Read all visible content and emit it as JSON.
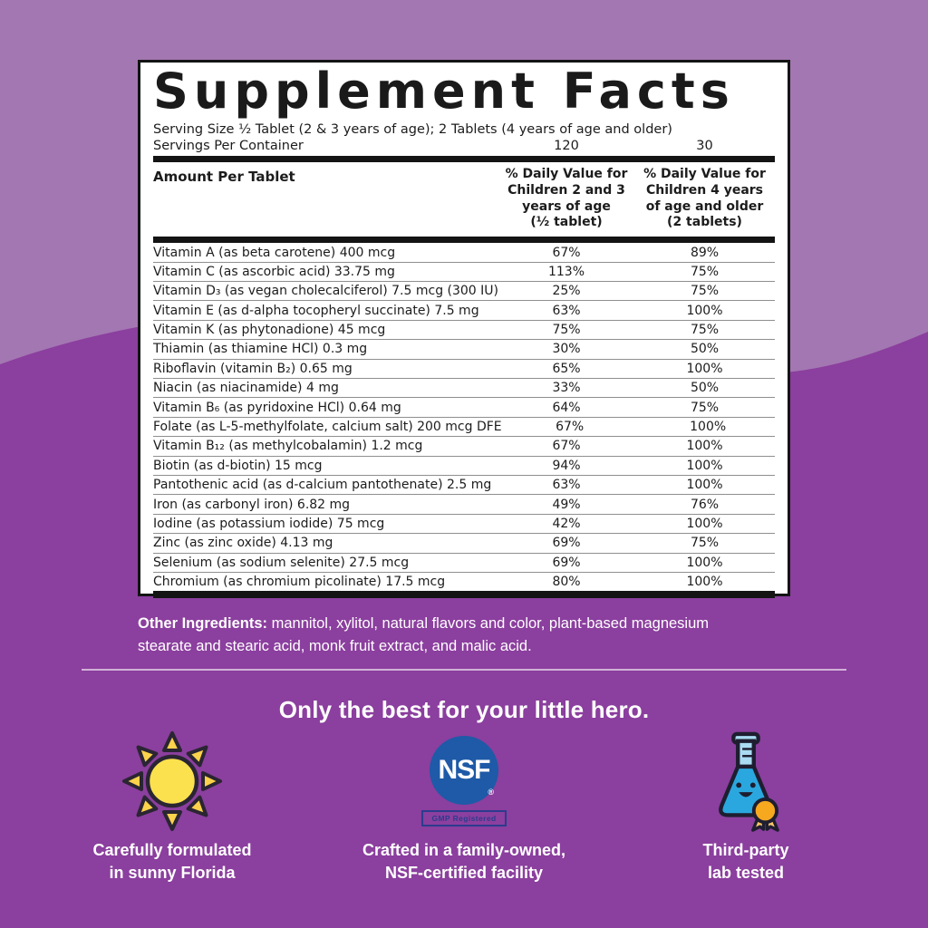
{
  "colors": {
    "background_light_purple": "#A377B2",
    "background_dark_purple": "#8B3F9E",
    "panel_background": "#FFFFFF",
    "panel_text": "#1C1C1C",
    "nsf_blue": "#1E5AA7",
    "gmp_navy": "#2B3C8E",
    "sun_yellow": "#FBE14D",
    "flask_blue": "#2AA7DF",
    "flask_neck_blue": "#A9DCF2",
    "ribbon_orange": "#F6A81F"
  },
  "label": {
    "title": "Supplement Facts",
    "serving_size_line": "Serving Size ½ Tablet (2 & 3 years of age); 2 Tablets (4 years of age and older)",
    "servings_per_container": {
      "label": "Servings Per Container",
      "value_children_2_3": "120",
      "value_children_4_plus": "30"
    },
    "columns": {
      "amount_header": "Amount Per Tablet",
      "col1_header": "% Daily Value for\nChildren 2 and 3\nyears of age\n(½ tablet)",
      "col2_header": "% Daily Value for\nChildren 4 years\nof age and older\n(2 tablets)"
    },
    "nutrients": [
      {
        "name": "Vitamin A (as beta carotene) 400 mcg",
        "dv1": "67%",
        "dv2": "89%"
      },
      {
        "name": "Vitamin C (as ascorbic acid) 33.75 mg",
        "dv1": "113%",
        "dv2": "75%"
      },
      {
        "name": "Vitamin D₃ (as vegan cholecalciferol) 7.5 mcg (300 IU)",
        "dv1": "25%",
        "dv2": "75%"
      },
      {
        "name": "Vitamin E (as d-alpha tocopheryl succinate) 7.5 mg",
        "dv1": "63%",
        "dv2": "100%"
      },
      {
        "name": "Vitamin K (as phytonadione) 45 mcg",
        "dv1": "75%",
        "dv2": "75%"
      },
      {
        "name": "Thiamin (as thiamine HCl) 0.3 mg",
        "dv1": "30%",
        "dv2": "50%"
      },
      {
        "name": "Riboflavin (vitamin B₂) 0.65 mg",
        "dv1": "65%",
        "dv2": "100%"
      },
      {
        "name": "Niacin (as niacinamide) 4 mg",
        "dv1": "33%",
        "dv2": "50%"
      },
      {
        "name": "Vitamin B₆ (as pyridoxine HCl) 0.64 mg",
        "dv1": "64%",
        "dv2": "75%"
      },
      {
        "name": "Folate (as L-5-methylfolate, calcium salt) 200 mcg DFE",
        "dv1": "67%",
        "dv2": "100%"
      },
      {
        "name": "Vitamin B₁₂ (as methylcobalamin) 1.2 mcg",
        "dv1": "67%",
        "dv2": "100%"
      },
      {
        "name": "Biotin (as d-biotin) 15 mcg",
        "dv1": "94%",
        "dv2": "100%"
      },
      {
        "name": "Pantothenic acid (as d-calcium pantothenate) 2.5 mg",
        "dv1": "63%",
        "dv2": "100%"
      },
      {
        "name": "Iron (as carbonyl iron) 6.82 mg",
        "dv1": "49%",
        "dv2": "76%"
      },
      {
        "name": "Iodine (as potassium iodide) 75 mcg",
        "dv1": "42%",
        "dv2": "100%"
      },
      {
        "name": "Zinc (as zinc oxide) 4.13 mg",
        "dv1": "69%",
        "dv2": "75%"
      },
      {
        "name": "Selenium (as sodium selenite) 27.5 mcg",
        "dv1": "69%",
        "dv2": "100%"
      },
      {
        "name": "Chromium (as chromium picolinate) 17.5 mcg",
        "dv1": "80%",
        "dv2": "100%"
      }
    ]
  },
  "other_ingredients": {
    "label": "Other Ingredients:",
    "text": " mannitol, xylitol, natural flavors and color, plant-based magnesium\nstearate and stearic acid, monk fruit extract, and malic acid."
  },
  "tagline": "Only the best for your little hero.",
  "badges": [
    {
      "icon": "sun-icon",
      "caption": "Carefully formulated\nin sunny Florida"
    },
    {
      "icon": "nsf-logo",
      "logo_text": "NSF",
      "registered_mark": "®",
      "sub_badge": "GMP Registered",
      "caption": "Crafted in a family-owned,\nNSF-certified facility"
    },
    {
      "icon": "lab-flask-icon",
      "caption": "Third-party\nlab tested"
    }
  ]
}
